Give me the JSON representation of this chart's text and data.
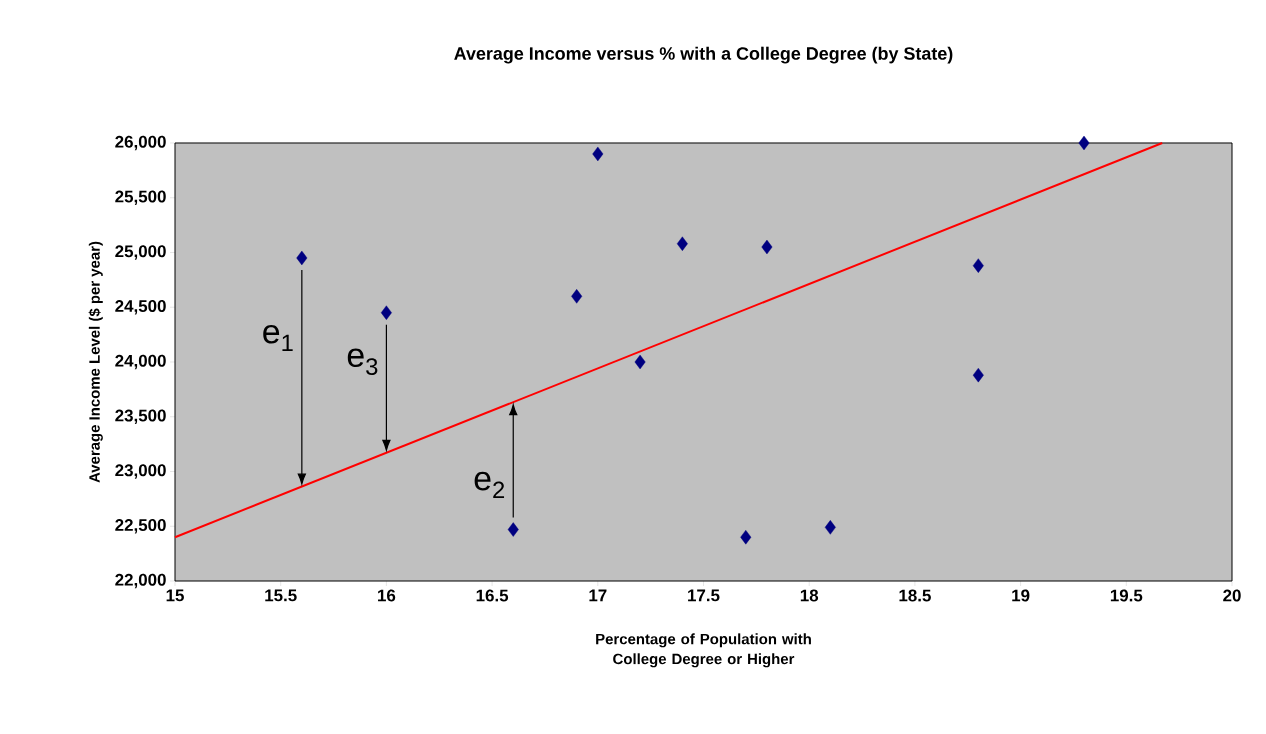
{
  "chart_data": {
    "type": "scatter",
    "title": "Average Income versus % with a College Degree (by State)",
    "xlabel": "Percentage of Population with College Degree or Higher",
    "ylabel": "Average Income Level ($ per year)",
    "series": [
      {
        "color": "#000080",
        "marker": "diamond",
        "x": [
          15.6,
          16.0,
          16.6,
          16.9,
          17.0,
          17.2,
          17.4,
          17.7,
          17.8,
          18.1,
          18.8,
          18.8,
          19.3
        ],
        "values": [
          24950,
          24450,
          22470,
          24600,
          25900,
          24000,
          25080,
          22400,
          25050,
          22490,
          24880,
          23880,
          26000
        ]
      },
      {
        "type": "line",
        "color": "#ff0000",
        "x": [
          15,
          19.67
        ],
        "values": [
          22400,
          26000
        ]
      }
    ],
    "xlim": [
      15,
      20
    ],
    "ylim": [
      22000,
      26000
    ],
    "xticks": [
      15,
      15.5,
      16,
      16.5,
      17,
      17.5,
      18,
      18.5,
      19,
      19.5,
      20
    ],
    "yticks": [
      {
        "value": 22000,
        "label": "22,000"
      },
      {
        "value": 22500,
        "label": "22,500"
      },
      {
        "value": 23000,
        "label": "23,000"
      },
      {
        "value": 23500,
        "label": "23,500"
      },
      {
        "value": 24000,
        "label": "24,000"
      },
      {
        "value": 24500,
        "label": "24,500"
      },
      {
        "value": 25000,
        "label": "25,000"
      },
      {
        "value": 25500,
        "label": "25,500"
      },
      {
        "value": 26000,
        "label": "26,000"
      }
    ],
    "grid": false,
    "annotations": [
      {
        "text": "e$_{1}$",
        "x": 15.6,
        "y": 24950
      },
      {
        "text": "e$_{2}$",
        "x": 16.6,
        "y": 22470
      },
      {
        "text": "e$_{3}$",
        "x": 16.0,
        "y": 24450
      }
    ]
  }
}
